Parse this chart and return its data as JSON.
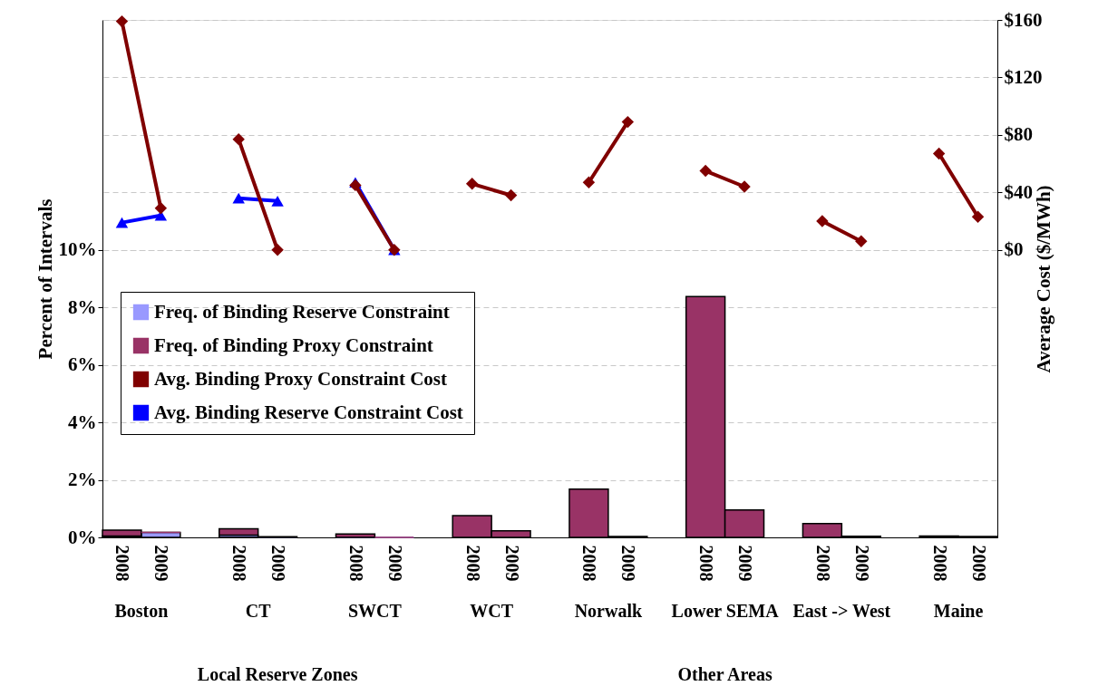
{
  "chart_data": {
    "type": "bar",
    "categories": [
      "2008",
      "2009",
      null,
      "2008",
      "2009",
      null,
      "2008",
      "2009",
      null,
      "2008",
      "2009",
      null,
      "2008",
      "2009",
      null,
      "2008",
      "2009",
      null,
      "2008",
      "2009",
      null,
      "2008",
      "2009"
    ],
    "stacked": true,
    "series": [
      {
        "name": "Freq. of Binding Reserve Constraint",
        "color": "#9999ff",
        "values": [
          0.05,
          0.17,
          null,
          0.08,
          0,
          null,
          0,
          0,
          null,
          null,
          null,
          null,
          null,
          null,
          null,
          null,
          null,
          null,
          null,
          null,
          null,
          null,
          null
        ]
      },
      {
        "name": "Freq. of Binding Proxy Constraint",
        "color": "#993366",
        "values": [
          0.2,
          0,
          null,
          0.22,
          0.02,
          null,
          0.12,
          0,
          null,
          0.76,
          0.23,
          null,
          1.68,
          0.03,
          null,
          8.38,
          0.95,
          null,
          0.48,
          0.04,
          null,
          0.05,
          0.03
        ]
      },
      {
        "name": "Avg. Binding Proxy Constraint Cost",
        "type": "line",
        "axis": "y2",
        "marker": "diamond",
        "color": "#800000",
        "values": [
          159,
          29,
          null,
          77,
          0,
          null,
          45,
          0,
          null,
          46,
          38,
          null,
          47,
          89,
          null,
          55,
          44,
          null,
          20,
          6,
          null,
          67,
          23
        ]
      },
      {
        "name": "Avg. Binding Reserve Constraint Cost",
        "type": "line",
        "axis": "y2",
        "marker": "triangle",
        "color": "#0000ff",
        "values": [
          19,
          24,
          null,
          36,
          34,
          null,
          47,
          0,
          null,
          null,
          null,
          null,
          null,
          null,
          null,
          null,
          null,
          null,
          null,
          null,
          null,
          null,
          null
        ]
      }
    ],
    "ylabel": "Percent of Intervals",
    "y2label": "Average Cost ($/MWh)",
    "ylim": [
      0,
      18
    ],
    "yticks": [
      {
        "value": 0,
        "label": "0%"
      },
      {
        "value": 2,
        "label": "2%"
      },
      {
        "value": 4,
        "label": "4%"
      },
      {
        "value": 6,
        "label": "6%"
      },
      {
        "value": 8,
        "label": "8%"
      },
      {
        "value": 10,
        "label": "10%"
      }
    ],
    "y2lim": [
      -200,
      160
    ],
    "y2ticks": [
      {
        "value": 0,
        "label": "$0"
      },
      {
        "value": 40,
        "label": "$40"
      },
      {
        "value": 80,
        "label": "$80"
      },
      {
        "value": 120,
        "label": "$120"
      },
      {
        "value": 160,
        "label": "$160"
      }
    ],
    "annotations": [
      "Boston",
      "CT",
      "SWCT",
      "WCT",
      "Norwalk",
      "Lower SEMA",
      "East -> West",
      "Maine",
      "Local Reserve Zones",
      "Other Areas"
    ],
    "grid": true,
    "legend": "left",
    "line_style": "solid"
  }
}
